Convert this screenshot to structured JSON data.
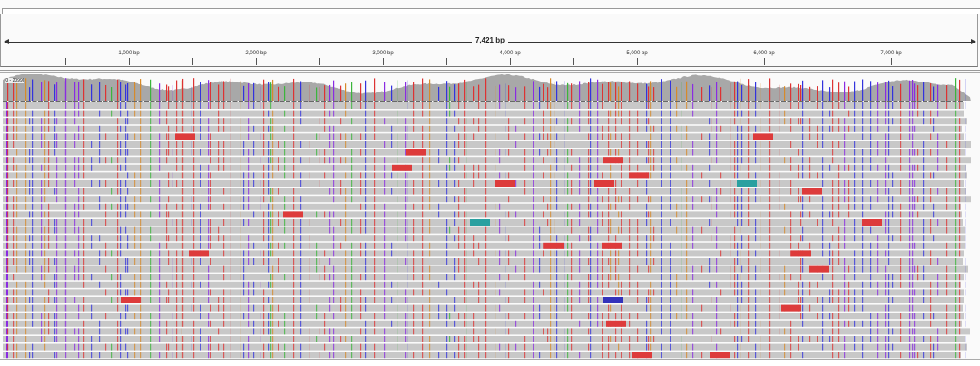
{
  "ruler": {
    "total_length_label": "7,421 bp",
    "tick_labels": [
      "1,000 bp",
      "2,000 bp",
      "3,000 bp",
      "4,000 bp",
      "5,000 bp",
      "6,000 bp",
      "7,000 bp"
    ],
    "tick_values": [
      1000,
      2000,
      3000,
      4000,
      5000,
      6000,
      7000
    ],
    "total_length": 7421
  },
  "coverage": {
    "range_label": "[0 - 2099]"
  },
  "colors": {
    "read": "#c8c8c8",
    "coverage": "#a8a8a8",
    "mismatch_A": "#3bb53b",
    "mismatch_C": "#3333dd",
    "mismatch_G": "#d68a2a",
    "mismatch_T": "#dd3333",
    "insertion": "#8a2be2",
    "deletion_block": "#dd3b3b"
  }
}
